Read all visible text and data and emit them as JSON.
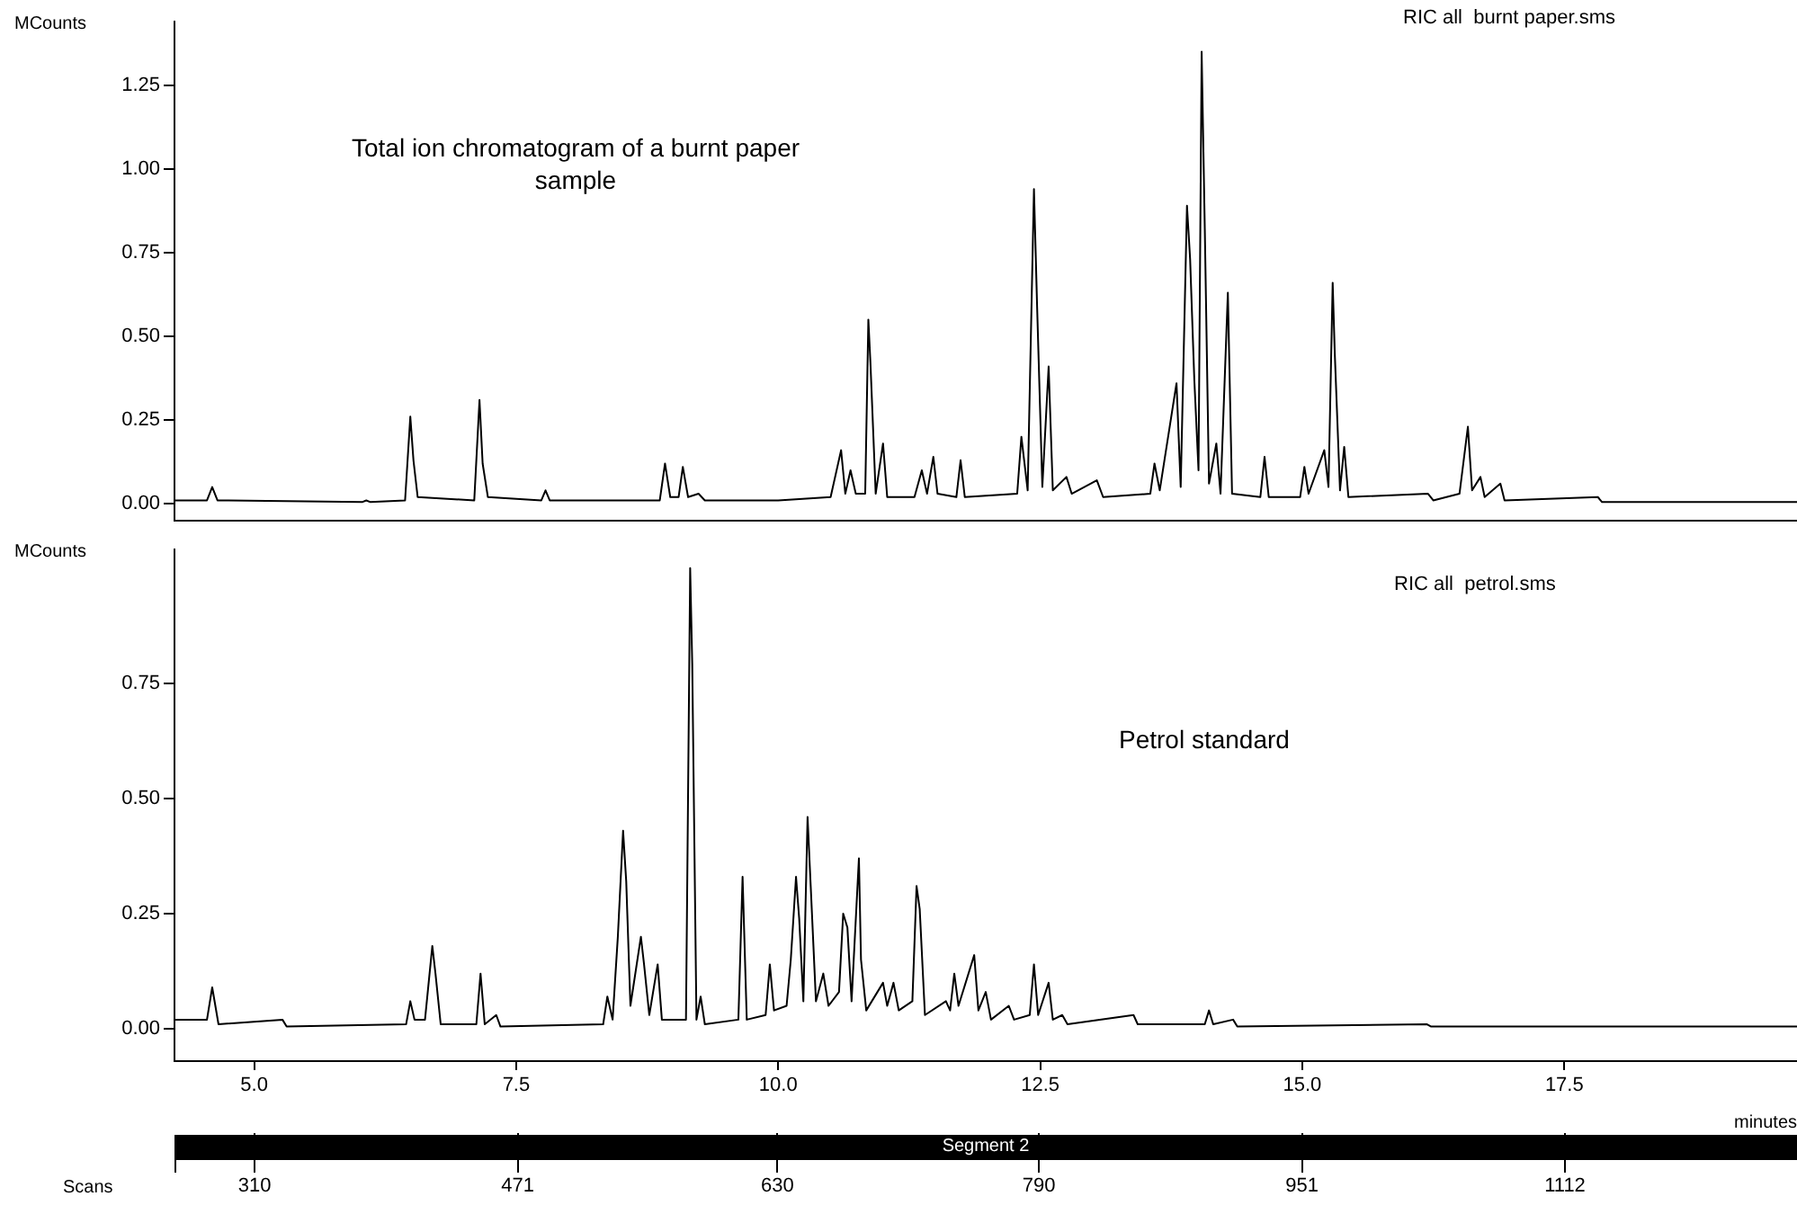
{
  "chart_data": [
    {
      "type": "line",
      "ylabel": "MCounts",
      "color": "#000000",
      "tick_labels": "y",
      "xlim": [
        4.24,
        19.72
      ],
      "ylim": [
        -0.05,
        1.44
      ],
      "yticks": [
        {
          "value": 0,
          "label": "0.00"
        },
        {
          "value": 0.25,
          "label": "0.25"
        },
        {
          "value": 0.5,
          "label": "0.50"
        },
        {
          "value": 0.75,
          "label": "0.75"
        },
        {
          "value": 1,
          "label": "1.00"
        },
        {
          "value": 1.25,
          "label": "1.25"
        }
      ],
      "annotations": [
        "RIC all  burnt paper.sms",
        "Total ion chromatogram of a burnt paper sample"
      ],
      "x": [
        4.24,
        4.55,
        4.6,
        4.65,
        6.03,
        6.07,
        6.11,
        6.44,
        6.49,
        6.52,
        6.56,
        7.1,
        7.15,
        7.18,
        7.23,
        7.74,
        7.78,
        7.82,
        8.87,
        8.92,
        8.97,
        9.05,
        9.09,
        9.14,
        9.24,
        9.3,
        10.0,
        10.5,
        10.6,
        10.64,
        10.69,
        10.74,
        10.83,
        10.86,
        10.88,
        10.93,
        11.0,
        11.04,
        11.3,
        11.37,
        11.42,
        11.48,
        11.52,
        11.7,
        11.74,
        11.78,
        12.28,
        12.32,
        12.38,
        12.44,
        12.47,
        12.52,
        12.58,
        12.62,
        12.75,
        12.8,
        13.04,
        13.1,
        13.55,
        13.59,
        13.64,
        13.8,
        13.84,
        13.9,
        13.93,
        13.97,
        14.01,
        14.04,
        14.07,
        14.11,
        14.18,
        14.22,
        14.29,
        14.33,
        14.6,
        14.64,
        14.68,
        14.98,
        15.02,
        15.06,
        15.21,
        15.25,
        15.29,
        15.31,
        15.36,
        15.4,
        15.44,
        16.2,
        16.25,
        16.5,
        16.58,
        16.62,
        16.7,
        16.74,
        16.89,
        16.93,
        17.82,
        17.86,
        19.72
      ],
      "values": [
        0.01,
        0.01,
        0.05,
        0.01,
        0.005,
        0.01,
        0.005,
        0.01,
        0.26,
        0.13,
        0.02,
        0.01,
        0.31,
        0.12,
        0.02,
        0.01,
        0.04,
        0.01,
        0.01,
        0.12,
        0.02,
        0.02,
        0.11,
        0.02,
        0.03,
        0.01,
        0.01,
        0.02,
        0.16,
        0.03,
        0.1,
        0.03,
        0.03,
        0.55,
        0.42,
        0.03,
        0.18,
        0.02,
        0.02,
        0.1,
        0.03,
        0.14,
        0.03,
        0.02,
        0.13,
        0.02,
        0.03,
        0.2,
        0.04,
        0.94,
        0.59,
        0.05,
        0.41,
        0.04,
        0.08,
        0.03,
        0.07,
        0.02,
        0.03,
        0.12,
        0.04,
        0.36,
        0.05,
        0.89,
        0.73,
        0.37,
        0.1,
        1.35,
        0.82,
        0.06,
        0.18,
        0.03,
        0.63,
        0.03,
        0.02,
        0.14,
        0.02,
        0.02,
        0.11,
        0.03,
        0.16,
        0.05,
        0.66,
        0.45,
        0.04,
        0.17,
        0.02,
        0.03,
        0.01,
        0.03,
        0.23,
        0.04,
        0.08,
        0.02,
        0.06,
        0.01,
        0.02,
        0.005,
        0.005
      ]
    },
    {
      "type": "line",
      "ylabel": "MCounts",
      "xlabel": "minutes",
      "x2label": "Scans",
      "color": "#000000",
      "xlim": [
        4.24,
        19.72
      ],
      "ylim": [
        -0.07,
        1.04
      ],
      "xticks": [
        {
          "value": 5,
          "label": "5.0"
        },
        {
          "value": 7.5,
          "label": "7.5"
        },
        {
          "value": 10,
          "label": "10.0"
        },
        {
          "value": 12.5,
          "label": "12.5"
        },
        {
          "value": 15,
          "label": "15.0"
        },
        {
          "value": 17.5,
          "label": "17.5"
        }
      ],
      "x2lim": [
        261,
        1254
      ],
      "x2ticks": [
        310,
        471,
        630,
        790,
        951,
        1112
      ],
      "yticks": [
        {
          "value": 0,
          "label": "0.00"
        },
        {
          "value": 0.25,
          "label": "0.25"
        },
        {
          "value": 0.5,
          "label": "0.50"
        },
        {
          "value": 0.75,
          "label": "0.75"
        }
      ],
      "annotations": [
        "RIC all  petrol.sms",
        "Petrol standard",
        "Segment 2"
      ],
      "x": [
        4.24,
        4.55,
        4.6,
        4.66,
        5.27,
        5.31,
        6.45,
        6.49,
        6.53,
        6.63,
        6.7,
        6.73,
        6.78,
        7.12,
        7.16,
        7.2,
        7.31,
        7.35,
        8.33,
        8.37,
        8.42,
        8.47,
        8.52,
        8.55,
        8.59,
        8.69,
        8.72,
        8.77,
        8.85,
        8.89,
        9.12,
        9.16,
        9.18,
        9.22,
        9.26,
        9.3,
        9.62,
        9.66,
        9.7,
        9.88,
        9.92,
        9.96,
        10.08,
        10.12,
        10.17,
        10.2,
        10.24,
        10.28,
        10.31,
        10.36,
        10.43,
        10.48,
        10.58,
        10.62,
        10.66,
        10.7,
        10.77,
        10.79,
        10.84,
        11.0,
        11.04,
        11.1,
        11.15,
        11.28,
        11.32,
        11.35,
        11.4,
        11.6,
        11.64,
        11.68,
        11.72,
        11.87,
        11.91,
        11.98,
        12.03,
        12.2,
        12.25,
        12.4,
        12.44,
        12.48,
        12.58,
        12.62,
        12.71,
        12.76,
        13.39,
        13.43,
        14.07,
        14.11,
        14.15,
        14.34,
        14.38,
        16.19,
        16.23,
        19.72
      ],
      "values": [
        0.02,
        0.02,
        0.09,
        0.01,
        0.02,
        0.005,
        0.01,
        0.06,
        0.02,
        0.02,
        0.18,
        0.12,
        0.01,
        0.01,
        0.12,
        0.01,
        0.03,
        0.005,
        0.01,
        0.07,
        0.02,
        0.2,
        0.43,
        0.32,
        0.05,
        0.2,
        0.14,
        0.03,
        0.14,
        0.02,
        0.02,
        1.0,
        0.79,
        0.02,
        0.07,
        0.01,
        0.02,
        0.33,
        0.02,
        0.03,
        0.14,
        0.04,
        0.05,
        0.15,
        0.33,
        0.24,
        0.06,
        0.46,
        0.31,
        0.06,
        0.12,
        0.05,
        0.08,
        0.25,
        0.22,
        0.06,
        0.37,
        0.15,
        0.04,
        0.1,
        0.05,
        0.1,
        0.04,
        0.06,
        0.31,
        0.26,
        0.03,
        0.06,
        0.04,
        0.12,
        0.05,
        0.16,
        0.04,
        0.08,
        0.02,
        0.05,
        0.02,
        0.03,
        0.14,
        0.03,
        0.1,
        0.02,
        0.03,
        0.01,
        0.03,
        0.01,
        0.01,
        0.04,
        0.01,
        0.02,
        0.005,
        0.01,
        0.005,
        0.005
      ]
    }
  ]
}
